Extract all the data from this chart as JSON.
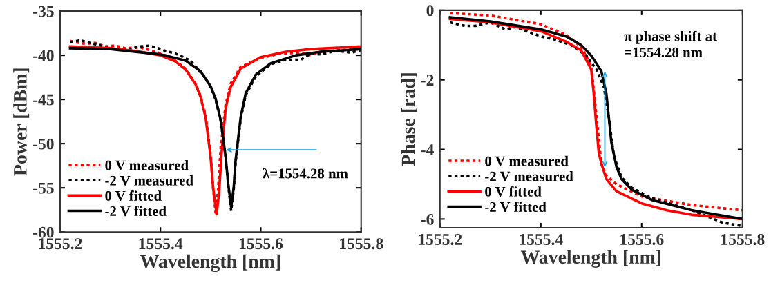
{
  "chart_data": [
    {
      "type": "line",
      "xlabel": "Wavelength [nm]",
      "ylabel": "Power [dBm]",
      "xlim": [
        1555.2,
        1555.8
      ],
      "xticks": [
        1555.2,
        1555.4,
        1555.6,
        1555.8
      ],
      "ylim": [
        -60,
        -35
      ],
      "yticks": [
        -60,
        -55,
        -50,
        -45,
        -40,
        -35
      ],
      "grid": false,
      "legend": "bottom left",
      "annotations": [
        {
          "text": "λ=1554.28 nm",
          "x": 1555.527,
          "y": -50.7
        }
      ],
      "series": [
        {
          "name": "0 V measured",
          "color": "#ff0000",
          "line_style": "dotted",
          "x": [
            1555.22,
            1555.25,
            1555.27,
            1555.29,
            1555.31,
            1555.33,
            1555.36,
            1555.39,
            1555.42,
            1555.45,
            1555.47,
            1555.48,
            1555.49,
            1555.5,
            1555.505,
            1555.51,
            1555.515,
            1555.52,
            1555.53,
            1555.54,
            1555.56,
            1555.6,
            1555.64,
            1555.68,
            1555.7,
            1555.72,
            1555.76,
            1555.8
          ],
          "values": [
            -38.4,
            -38.7,
            -38.6,
            -39.0,
            -38.9,
            -39.2,
            -39.1,
            -39.6,
            -40.2,
            -41.5,
            -43.2,
            -44.6,
            -46.8,
            -51.2,
            -55.0,
            -57.8,
            -55.2,
            -50.5,
            -45.6,
            -43.2,
            -41.3,
            -40.3,
            -39.8,
            -39.7,
            -40.0,
            -39.6,
            -39.4,
            -39.3
          ]
        },
        {
          "name": "-2 V measured",
          "color": "#000000",
          "line_style": "dotted",
          "x": [
            1555.22,
            1555.24,
            1555.26,
            1555.28,
            1555.3,
            1555.33,
            1555.36,
            1555.38,
            1555.41,
            1555.43,
            1555.46,
            1555.49,
            1555.5,
            1555.51,
            1555.52,
            1555.53,
            1555.535,
            1555.541,
            1555.546,
            1555.55,
            1555.56,
            1555.57,
            1555.59,
            1555.62,
            1555.65,
            1555.68,
            1555.7,
            1555.72,
            1555.75,
            1555.78,
            1555.8
          ],
          "values": [
            -38.5,
            -38.3,
            -38.6,
            -38.9,
            -39.2,
            -39.4,
            -39.0,
            -38.9,
            -39.5,
            -39.8,
            -40.6,
            -42.6,
            -43.6,
            -45.0,
            -47.4,
            -51.5,
            -54.6,
            -57.6,
            -55.2,
            -52.0,
            -47.2,
            -44.5,
            -42.4,
            -41.0,
            -40.5,
            -40.5,
            -39.8,
            -39.9,
            -39.5,
            -39.7,
            -39.4
          ]
        },
        {
          "name": "0 V fitted",
          "color": "#ff0000",
          "line_style": "solid",
          "x": [
            1555.22,
            1555.3,
            1555.35,
            1555.4,
            1555.43,
            1555.45,
            1555.47,
            1555.48,
            1555.49,
            1555.5,
            1555.505,
            1555.512,
            1555.517,
            1555.522,
            1555.53,
            1555.54,
            1555.56,
            1555.6,
            1555.65,
            1555.7,
            1555.8
          ],
          "values": [
            -39.0,
            -39.2,
            -39.5,
            -40.0,
            -40.7,
            -41.6,
            -43.3,
            -44.7,
            -47.0,
            -51.5,
            -55.0,
            -58.0,
            -55.5,
            -51.0,
            -46.0,
            -43.6,
            -41.5,
            -40.2,
            -39.6,
            -39.3,
            -39.0
          ]
        },
        {
          "name": "-2 V fitted",
          "color": "#000000",
          "line_style": "solid",
          "x": [
            1555.22,
            1555.3,
            1555.4,
            1555.45,
            1555.48,
            1555.5,
            1555.51,
            1555.52,
            1555.53,
            1555.535,
            1555.541,
            1555.546,
            1555.55,
            1555.56,
            1555.57,
            1555.59,
            1555.62,
            1555.67,
            1555.72,
            1555.8
          ],
          "values": [
            -39.2,
            -39.3,
            -39.9,
            -40.6,
            -41.8,
            -43.5,
            -44.9,
            -47.3,
            -51.5,
            -54.5,
            -57.2,
            -55.0,
            -51.8,
            -47.0,
            -44.3,
            -42.2,
            -40.9,
            -40.0,
            -39.6,
            -39.3
          ]
        }
      ]
    },
    {
      "type": "line",
      "xlabel": "Wavelength [nm]",
      "ylabel": "Phase [rad]",
      "xlim": [
        1555.2,
        1555.8
      ],
      "xticks": [
        1555.2,
        1555.4,
        1555.6,
        1555.8
      ],
      "ylim": [
        -6.25,
        0
      ],
      "yticks": [
        -6,
        -4,
        -2,
        0
      ],
      "grid": false,
      "legend": "bottom left",
      "annotations": [
        {
          "text": "π phase shift at\n=1554.28 nm",
          "x": 1555.527,
          "y": -1.7
        }
      ],
      "series": [
        {
          "name": "0 V measured",
          "color": "#ff0000",
          "line_style": "dotted",
          "x": [
            1555.22,
            1555.3,
            1555.4,
            1555.45,
            1555.48,
            1555.5,
            1555.51,
            1555.52,
            1555.53,
            1555.55,
            1555.6,
            1555.7,
            1555.8
          ],
          "values": [
            -0.08,
            -0.15,
            -0.4,
            -0.7,
            -1.05,
            -1.6,
            -3.0,
            -4.4,
            -4.75,
            -5.0,
            -5.35,
            -5.6,
            -5.75
          ]
        },
        {
          "name": "-2 V measured",
          "color": "#000000",
          "line_style": "dotted",
          "x": [
            1555.22,
            1555.25,
            1555.27,
            1555.3,
            1555.33,
            1555.35,
            1555.4,
            1555.43,
            1555.46,
            1555.49,
            1555.51,
            1555.525,
            1555.535,
            1555.545,
            1555.56,
            1555.58,
            1555.62,
            1555.7,
            1555.76,
            1555.8
          ],
          "values": [
            -0.35,
            -0.45,
            -0.45,
            -0.35,
            -0.55,
            -0.48,
            -0.75,
            -0.85,
            -1.0,
            -1.3,
            -1.7,
            -2.2,
            -3.1,
            -4.2,
            -4.8,
            -5.1,
            -5.4,
            -5.75,
            -6.1,
            -6.2
          ]
        },
        {
          "name": "0 V fitted",
          "color": "#ff0000",
          "line_style": "solid",
          "x": [
            1555.22,
            1555.3,
            1555.4,
            1555.45,
            1555.48,
            1555.5,
            1555.505,
            1555.51,
            1555.515,
            1555.52,
            1555.53,
            1555.55,
            1555.6,
            1555.65,
            1555.7,
            1555.8
          ],
          "values": [
            -0.25,
            -0.35,
            -0.6,
            -0.9,
            -1.15,
            -1.7,
            -2.4,
            -3.3,
            -4.1,
            -4.4,
            -4.85,
            -5.2,
            -5.55,
            -5.75,
            -5.88,
            -6.0
          ]
        },
        {
          "name": "-2 V fitted",
          "color": "#000000",
          "line_style": "solid",
          "x": [
            1555.22,
            1555.3,
            1555.4,
            1555.45,
            1555.48,
            1555.5,
            1555.52,
            1555.53,
            1555.535,
            1555.54,
            1555.55,
            1555.56,
            1555.58,
            1555.62,
            1555.7,
            1555.8
          ],
          "values": [
            -0.2,
            -0.32,
            -0.55,
            -0.75,
            -1.0,
            -1.3,
            -1.75,
            -2.4,
            -3.1,
            -3.8,
            -4.5,
            -4.85,
            -5.15,
            -5.45,
            -5.75,
            -6.0
          ]
        }
      ]
    }
  ]
}
